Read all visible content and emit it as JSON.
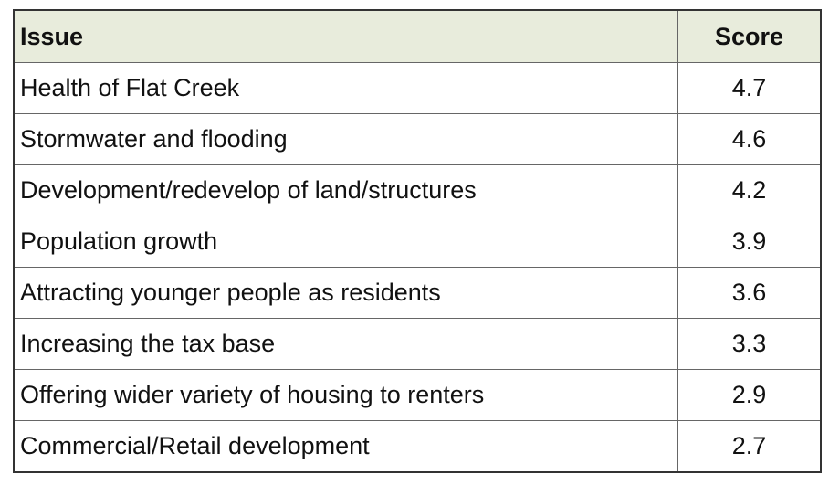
{
  "table": {
    "header": [
      "Issue",
      "Score"
    ],
    "rows": [
      [
        "Health of Flat Creek",
        4.7
      ],
      [
        "Stormwater and flooding",
        4.6
      ],
      [
        "Development/redevelop of land/structures",
        4.2
      ],
      [
        "Population growth",
        3.9
      ],
      [
        "Attracting younger people as residents",
        3.6
      ],
      [
        "Increasing the tax base",
        3.3
      ],
      [
        "Offering wider variety of housing to renters",
        2.9
      ],
      [
        "Commercial/Retail development",
        2.7
      ]
    ]
  }
}
